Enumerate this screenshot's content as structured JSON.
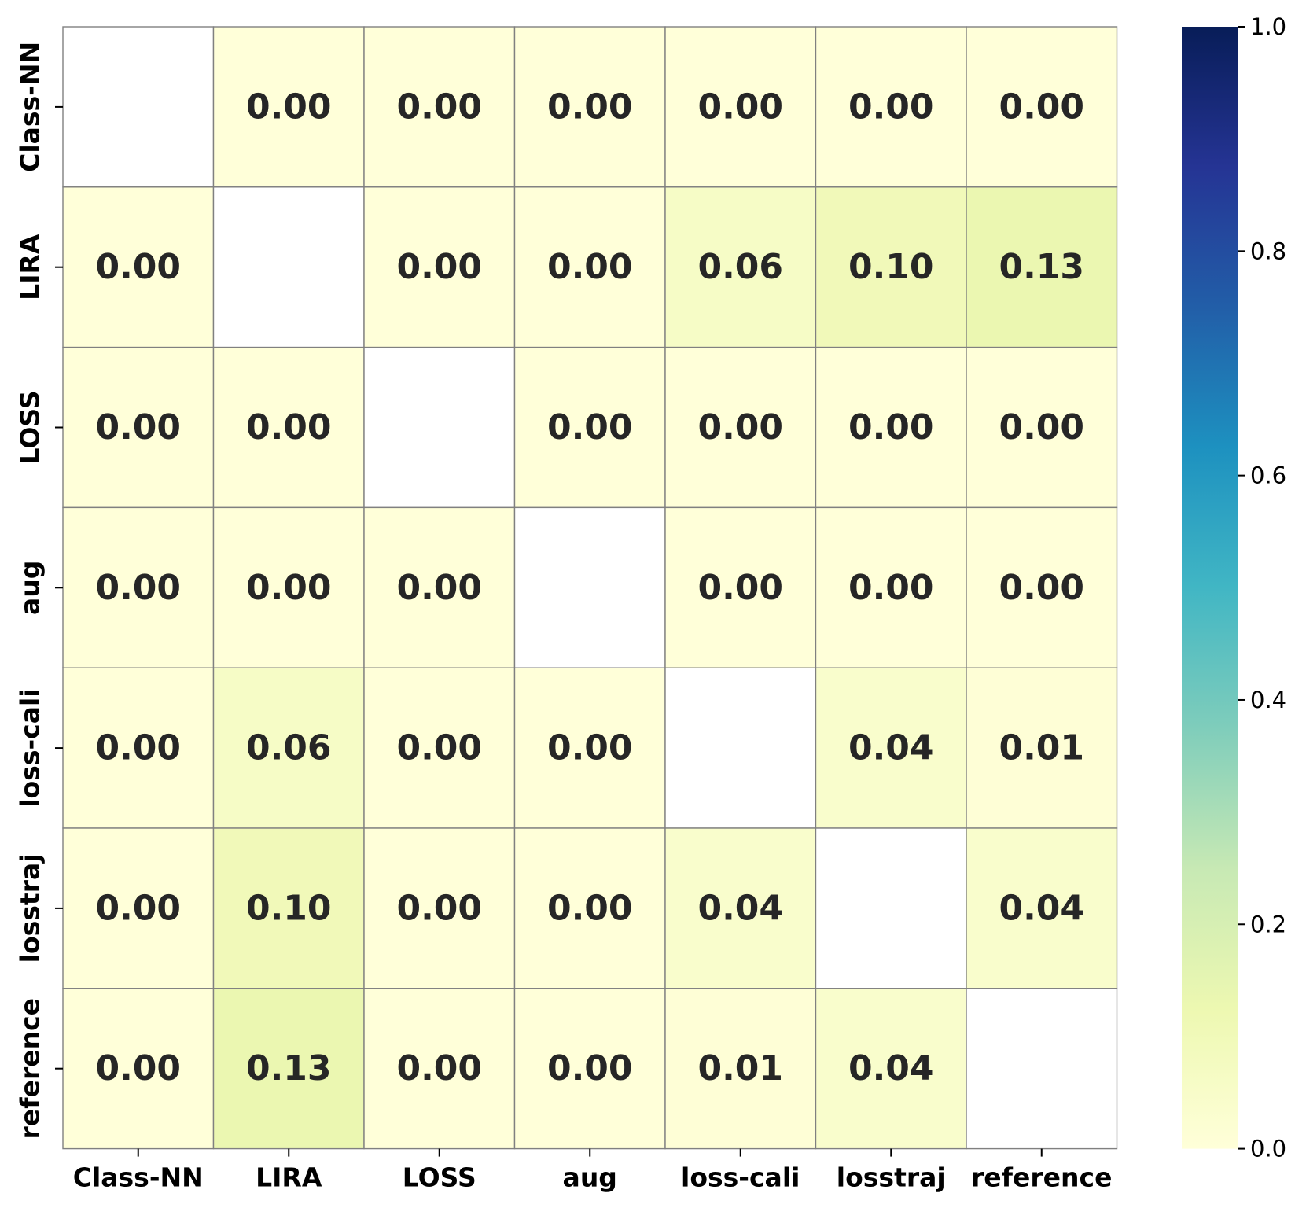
{
  "chart_data": {
    "type": "heatmap",
    "title": "",
    "xlabel": "",
    "ylabel": "",
    "rows": [
      "Class-NN",
      "LIRA",
      "LOSS",
      "aug",
      "loss-cali",
      "losstraj",
      "reference"
    ],
    "columns": [
      "Class-NN",
      "LIRA",
      "LOSS",
      "aug",
      "loss-cali",
      "losstraj",
      "reference"
    ],
    "values": [
      [
        null,
        0.0,
        0.0,
        0.0,
        0.0,
        0.0,
        0.0
      ],
      [
        0.0,
        null,
        0.0,
        0.0,
        0.06,
        0.1,
        0.13
      ],
      [
        0.0,
        0.0,
        null,
        0.0,
        0.0,
        0.0,
        0.0
      ],
      [
        0.0,
        0.0,
        0.0,
        null,
        0.0,
        0.0,
        0.0
      ],
      [
        0.0,
        0.06,
        0.0,
        0.0,
        null,
        0.04,
        0.01
      ],
      [
        0.0,
        0.1,
        0.0,
        0.0,
        0.04,
        null,
        0.04
      ],
      [
        0.0,
        0.13,
        0.0,
        0.0,
        0.01,
        0.04,
        null
      ]
    ],
    "value_format": "0.00",
    "colormap": "YlGnBu",
    "vmin": 0.0,
    "vmax": 1.0,
    "colorbar_ticks": [
      "0.0",
      "0.2",
      "0.4",
      "0.6",
      "0.8",
      "1.0"
    ],
    "grid_line_color": "#808080",
    "masked_cell_color": "#ffffff"
  }
}
